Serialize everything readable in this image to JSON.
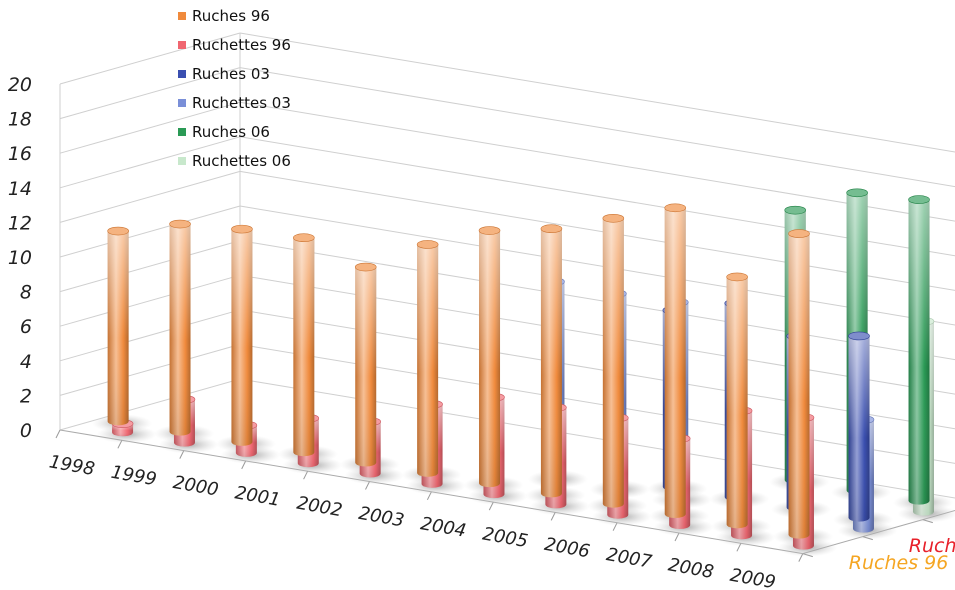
{
  "chart_data": {
    "type": "bar",
    "title": "",
    "xlabel": "",
    "ylabel": "",
    "ylim": [
      0,
      20
    ],
    "yticks": [
      "0",
      "2",
      "4",
      "6",
      "8",
      "10",
      "12",
      "14",
      "16",
      "18",
      "20"
    ],
    "categories": [
      "1998",
      "1999",
      "2000",
      "2001",
      "2002",
      "2003",
      "2004",
      "2005",
      "2006",
      "2007",
      "2008",
      "2009"
    ],
    "depth_categories": [
      "Ruches 96",
      "Ruches 03",
      "Ruches 06"
    ],
    "depth_colors": [
      "#f5a623",
      "#e8202a",
      "#7aa83a"
    ],
    "legend_placement": "top-left",
    "grid": true,
    "series": [
      {
        "name": "Ruches 96",
        "row": 0,
        "front": true,
        "color": "#f08a3c",
        "values": [
          11,
          12,
          12.3,
          12.4,
          11.3,
          13.2,
          14.6,
          15.3,
          16.5,
          17.7,
          14.3,
          17.4
        ]
      },
      {
        "name": "Ruchettes 96",
        "row": 0,
        "front": false,
        "color": "#f06670",
        "values": [
          0.5,
          2.5,
          1.6,
          2.6,
          3,
          4.6,
          5.6,
          5.6,
          5.6,
          5,
          7.2,
          7.4
        ]
      },
      {
        "name": "Ruches 03",
        "row": 1,
        "front": true,
        "color": "#3a4fb0",
        "values": [
          0,
          0,
          0,
          0,
          0,
          0,
          0,
          0,
          10.2,
          11.2,
          9.9,
          10.5
        ]
      },
      {
        "name": "Ruchettes 03",
        "row": 1,
        "front": false,
        "color": "#7a8fd8",
        "values": [
          0,
          0,
          0,
          0,
          0,
          0,
          11.3,
          11.2,
          11.3,
          0,
          0,
          6.3
        ]
      },
      {
        "name": "Ruches 06",
        "row": 2,
        "front": true,
        "color": "#2a9a55",
        "values": [
          0,
          0,
          0,
          0,
          0,
          0,
          0,
          0,
          0,
          15.6,
          17.2,
          17.4
        ]
      },
      {
        "name": "Ruchettes 06",
        "row": 2,
        "front": false,
        "color": "#c8e8cc",
        "values": [
          0,
          0,
          0,
          0,
          0,
          0,
          0,
          0,
          0,
          0,
          0,
          11
        ]
      }
    ]
  }
}
